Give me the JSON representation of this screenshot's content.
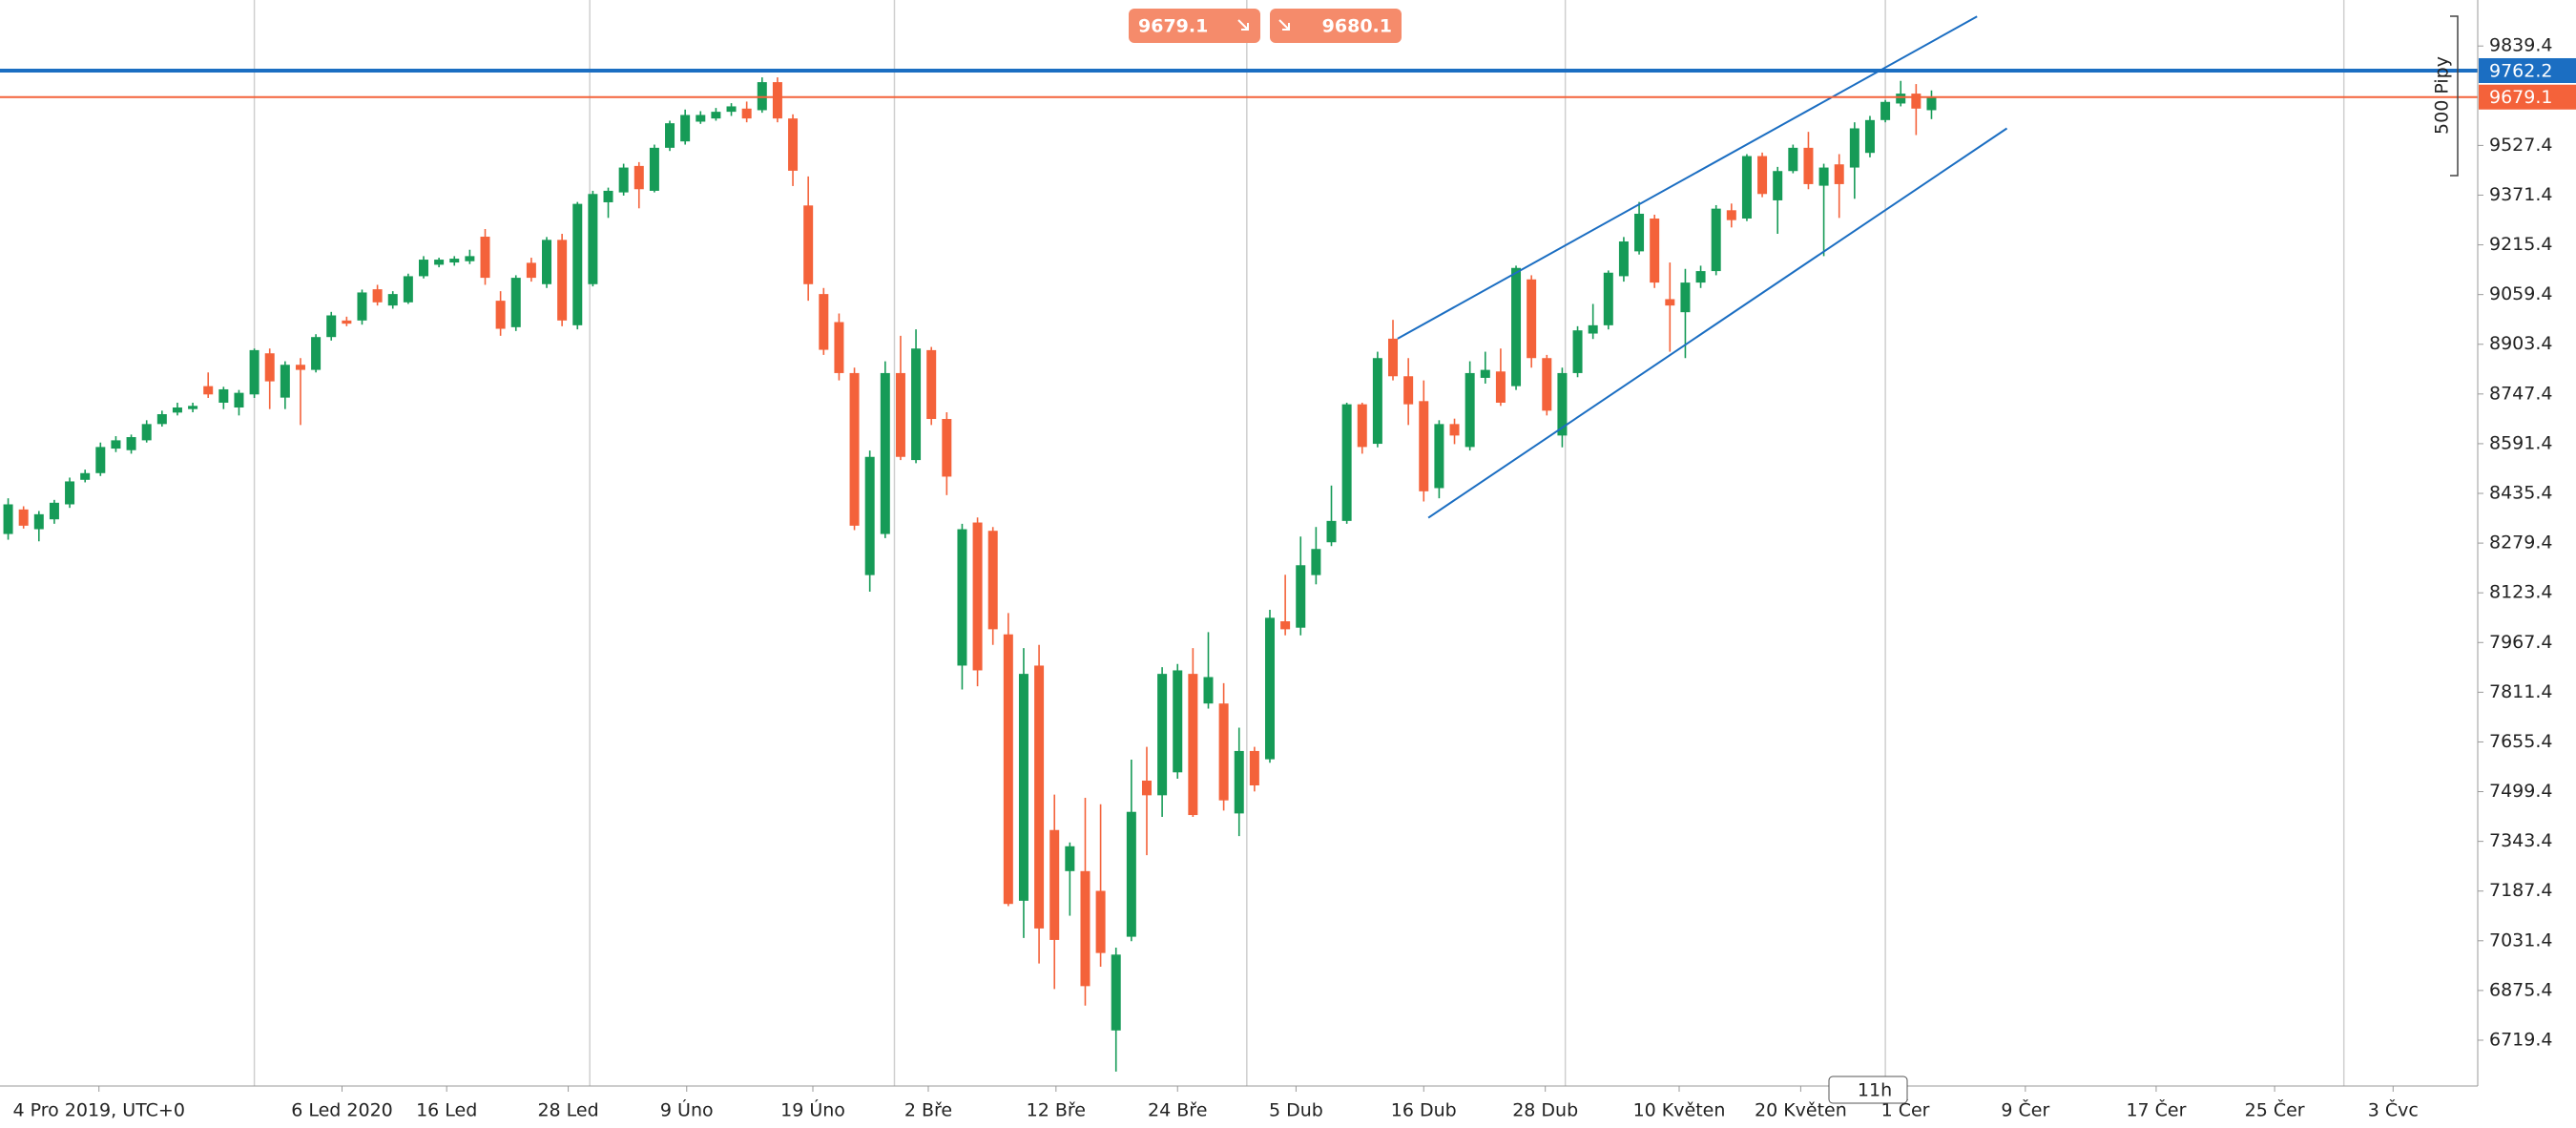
{
  "chart_data": {
    "type": "candlestick",
    "colors": {
      "up": "#169b57",
      "down": "#f4623a",
      "grid": "#cfcfcf"
    },
    "open": [
      8308,
      8385,
      8323,
      8354,
      8401,
      8478,
      8499,
      8576,
      8571,
      8602,
      8653,
      8689,
      8700,
      8772,
      8720,
      8705,
      8746,
      8875,
      8736,
      8839,
      8823,
      8926,
      8978,
      8978,
      9076,
      9025,
      9035,
      9117,
      9153,
      9160,
      9164,
      9241,
      9040,
      8957,
      9159,
      9092,
      9231,
      8963,
      9092,
      9349,
      9380,
      9463,
      9385,
      9520,
      9540,
      9602,
      9612,
      9633,
      9643,
      9638,
      9726,
      9612,
      9339,
      9061,
      8973,
      8813,
      8179,
      8308,
      8813,
      8540,
      8885,
      8669,
      7895,
      8344,
      8318,
      7993,
      7157,
      7895,
      7379,
      7250,
      7250,
      7188,
      6750,
      7044,
      7534,
      7488,
      7560,
      7869,
      7776,
      7776,
      7431,
      7627,
      7601,
      8034,
      8014,
      8179,
      8282,
      8349,
      8715,
      8591,
      8921,
      8803,
      8725,
      8452,
      8653,
      8581,
      8798,
      8818,
      8772,
      9107,
      8860,
      8617,
      8813,
      8937,
      8963,
      9117,
      9195,
      9298,
      9045,
      9004,
      9097,
      9133,
      9324,
      9298,
      9494,
      9355,
      9447,
      9520,
      9401,
      9468,
      9458,
      9504,
      9607,
      9659,
      9690,
      9638
    ],
    "high": [
      8420,
      8395,
      8380,
      8415,
      8485,
      8510,
      8595,
      8615,
      8620,
      8665,
      8695,
      8720,
      8720,
      8815,
      8770,
      8760,
      8890,
      8890,
      8850,
      8860,
      8935,
      9005,
      8990,
      9075,
      9090,
      9070,
      9125,
      9180,
      9175,
      9180,
      9200,
      9265,
      9070,
      9120,
      9175,
      9240,
      9250,
      9350,
      9385,
      9395,
      9470,
      9475,
      9530,
      9605,
      9640,
      9635,
      9645,
      9660,
      9665,
      9741,
      9741,
      9625,
      9430,
      9080,
      9000,
      8830,
      8570,
      8850,
      8930,
      8950,
      8895,
      8690,
      8340,
      8360,
      8330,
      8060,
      7950,
      7960,
      7490,
      7340,
      7480,
      7460,
      7010,
      7600,
      7640,
      7890,
      7900,
      7950,
      8000,
      7840,
      7700,
      7640,
      8070,
      8180,
      8300,
      8330,
      8460,
      8720,
      8720,
      8880,
      8980,
      8860,
      8790,
      8665,
      8670,
      8850,
      8880,
      8890,
      9150,
      9120,
      8870,
      8830,
      8960,
      9030,
      9135,
      9240,
      9350,
      9310,
      9160,
      9140,
      9150,
      9340,
      9345,
      9500,
      9505,
      9460,
      9530,
      9570,
      9470,
      9500,
      9600,
      9620,
      9670,
      9730,
      9720,
      9700
    ],
    "low": [
      8290,
      8325,
      8285,
      8340,
      8390,
      8470,
      8490,
      8565,
      8560,
      8595,
      8645,
      8680,
      8690,
      8735,
      8700,
      8680,
      8735,
      8700,
      8700,
      8650,
      8815,
      8915,
      8960,
      8965,
      9025,
      9015,
      9030,
      9110,
      9145,
      9150,
      9155,
      9090,
      8930,
      8945,
      9100,
      9080,
      8960,
      8950,
      9085,
      9300,
      9370,
      9330,
      9380,
      9510,
      9530,
      9595,
      9605,
      9620,
      9600,
      9630,
      9600,
      9400,
      9040,
      8870,
      8790,
      8320,
      8127,
      8295,
      8540,
      8530,
      8650,
      8430,
      7820,
      7830,
      7960,
      7140,
      7040,
      6960,
      6880,
      7110,
      6828,
      6950,
      6621,
      7030,
      7300,
      7420,
      7540,
      7420,
      7760,
      7440,
      7360,
      7500,
      7590,
      7990,
      7990,
      8150,
      8270,
      8340,
      8560,
      8580,
      8790,
      8650,
      8410,
      8420,
      8590,
      8570,
      8780,
      8710,
      8760,
      8830,
      8680,
      8580,
      8800,
      8920,
      8950,
      9100,
      9185,
      9080,
      8880,
      8860,
      9080,
      9120,
      9270,
      9290,
      9365,
      9250,
      9440,
      9390,
      9180,
      9300,
      9360,
      9490,
      9600,
      9650,
      9560,
      9610
    ],
    "close": [
      8401,
      8334,
      8370,
      8406,
      8473,
      8499,
      8581,
      8602,
      8612,
      8653,
      8684,
      8705,
      8710,
      8746,
      8762,
      8751,
      8885,
      8787,
      8839,
      8823,
      8926,
      8994,
      8968,
      9066,
      9035,
      9061,
      9117,
      9169,
      9169,
      9172,
      9180,
      9112,
      8952,
      9112,
      9112,
      9231,
      8978,
      9344,
      9375,
      9385,
      9458,
      9390,
      9520,
      9597,
      9623,
      9623,
      9633,
      9650,
      9612,
      9726,
      9612,
      9448,
      9092,
      8886,
      8813,
      8334,
      8550,
      8813,
      8550,
      8890,
      8669,
      8488,
      8323,
      7880,
      8009,
      7147,
      7869,
      7070,
      7034,
      7328,
      6889,
      6993,
      6988,
      7436,
      7488,
      7869,
      7880,
      7426,
      7859,
      7472,
      7627,
      7519,
      8045,
      8009,
      8210,
      8261,
      8349,
      8715,
      8581,
      8860,
      8803,
      8715,
      8442,
      8653,
      8617,
      8813,
      8823,
      8720,
      9143,
      8860,
      8695,
      8813,
      8947,
      8963,
      9128,
      9226,
      9313,
      9097,
      9025,
      9097,
      9133,
      9329,
      9293,
      9494,
      9375,
      9447,
      9520,
      9406,
      9458,
      9406,
      9581,
      9607,
      9664,
      9690,
      9643,
      9679.1
    ],
    "xlim": [
      -0.53,
      160.5
    ],
    "ylim": [
      6575.6,
      9983.8
    ],
    "yticks": [
      9839.4,
      9527.4,
      9371.4,
      9215.4,
      9059.4,
      8903.4,
      8747.4,
      8591.4,
      8435.4,
      8279.4,
      8123.4,
      7967.4,
      7811.4,
      7655.4,
      7499.4,
      7343.4,
      7187.4,
      7031.4,
      6875.4,
      6719.4
    ],
    "xgrid": [
      16.0,
      37.8,
      57.6,
      80.5,
      101.2,
      122.0,
      151.8
    ],
    "xticks": [
      {
        "value": 5.9,
        "label": "4 Pro 2019, UTC+0"
      },
      {
        "value": 21.7,
        "label": "6 Led 2020"
      },
      {
        "value": 28.5,
        "label": "16 Led"
      },
      {
        "value": 36.4,
        "label": "28 Led"
      },
      {
        "value": 44.1,
        "label": "9 Úno"
      },
      {
        "value": 52.3,
        "label": "19 Úno"
      },
      {
        "value": 59.8,
        "label": "2 Bře"
      },
      {
        "value": 68.1,
        "label": "12 Bře"
      },
      {
        "value": 76.0,
        "label": "24 Bře"
      },
      {
        "value": 83.7,
        "label": "5 Dub"
      },
      {
        "value": 92.0,
        "label": "16 Dub"
      },
      {
        "value": 99.9,
        "label": "28 Dub"
      },
      {
        "value": 108.6,
        "label": "10 Květen"
      },
      {
        "value": 116.5,
        "label": "20 Květen"
      },
      {
        "value": 123.3,
        "label": "1 Čer"
      },
      {
        "value": 131.1,
        "label": "9 Čer"
      },
      {
        "value": 139.6,
        "label": "17 Čer"
      },
      {
        "value": 147.3,
        "label": "25 Čer"
      },
      {
        "value": 155.0,
        "label": "3 Čvc"
      }
    ],
    "price_lines": [
      {
        "value": 9762.2,
        "color": "#1b6ec2"
      },
      {
        "value": 9679.1,
        "color": "#f4623a"
      }
    ],
    "trendlines": [
      {
        "x": [
          90.3,
          127.96
        ],
        "y": [
          8921,
          9932
        ],
        "color": "#1b6ec2"
      },
      {
        "x": [
          92.3,
          129.9
        ],
        "y": [
          8359,
          9581
        ],
        "color": "#1b6ec2"
      }
    ]
  },
  "trade_panel": {
    "sell": 9679.1,
    "buy": 9680.1
  },
  "range_label": "500 Pipy",
  "timeframe_badge": "11h"
}
